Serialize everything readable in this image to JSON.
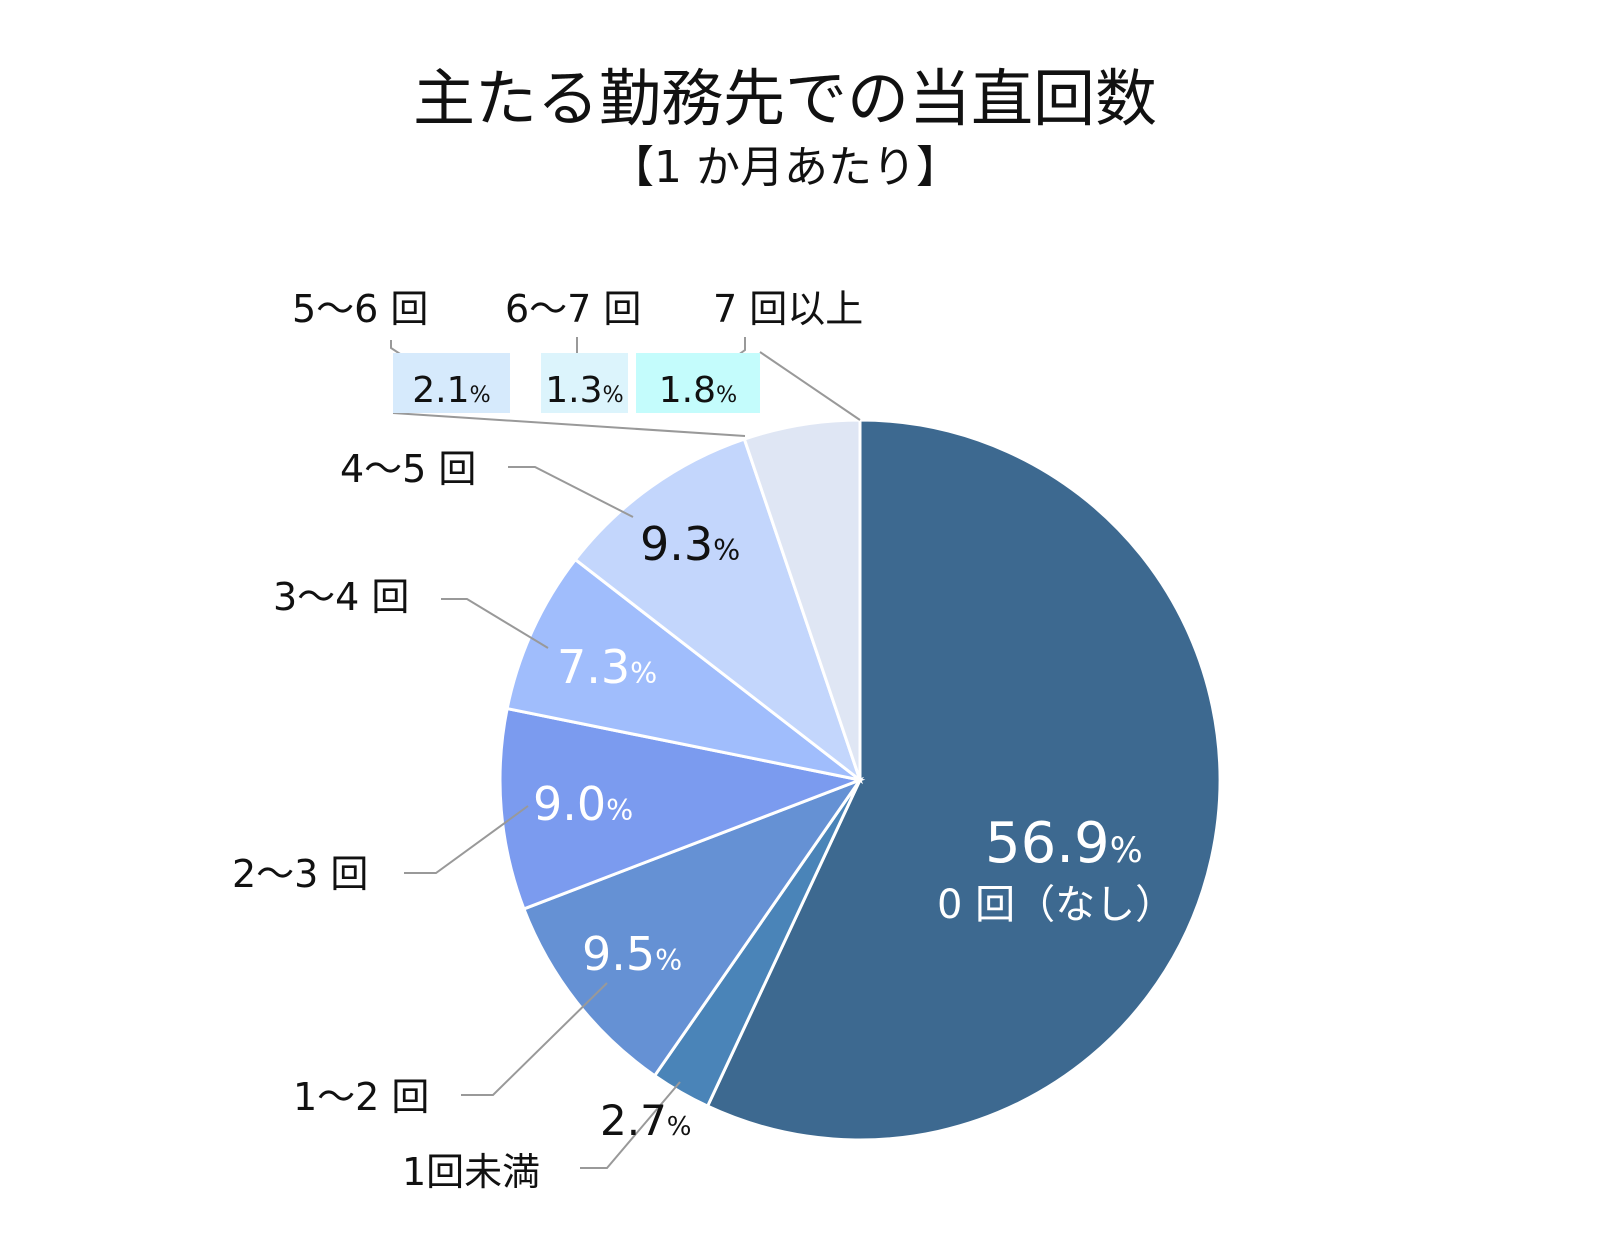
{
  "chart_data": {
    "type": "pie",
    "title": "主たる勤務先での当直回数",
    "subtitle": "【1 か月あたり】",
    "unit": "%",
    "start_angle": "12 o'clock",
    "direction": "clockwise",
    "slices": [
      {
        "label": "0 回（なし）",
        "value": 56.9,
        "color": "#3d6990",
        "label_color": "#ffffff"
      },
      {
        "label": "1回未満",
        "value": 2.7,
        "color": "#4a84b8",
        "label_color": "#111111"
      },
      {
        "label": "1～2 回",
        "value": 9.5,
        "color": "#6591d4",
        "label_color": "#ffffff"
      },
      {
        "label": "2～3 回",
        "value": 9.0,
        "color": "#7b9bef",
        "label_color": "#ffffff"
      },
      {
        "label": "3～4 回",
        "value": 7.3,
        "color": "#a0bdfc",
        "label_color": "#ffffff"
      },
      {
        "label": "4～5 回",
        "value": 9.3,
        "color": "#c3d6fc",
        "label_color": "#111111"
      }
    ],
    "grouped_slice": {
      "color": "#dfe6f4",
      "breakdown": [
        {
          "label": "5～6 回",
          "value": 2.1,
          "color": "#d6eafc"
        },
        {
          "label": "6～7 回",
          "value": 1.3,
          "color": "#dcf4fc"
        },
        {
          "label": "7 回以上",
          "value": 1.8,
          "color": "#c4fcfc"
        }
      ]
    }
  }
}
